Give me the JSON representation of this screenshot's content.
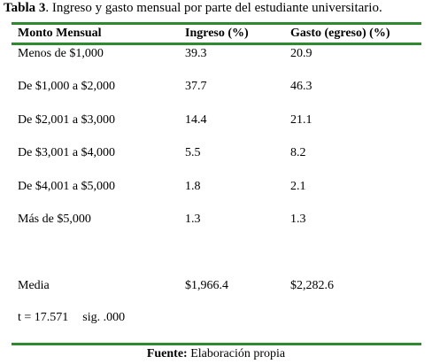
{
  "caption": {
    "label": "Tabla 3",
    "text": ". Ingreso y gasto mensual por parte del estudiante universitario."
  },
  "table": {
    "headers": [
      "Monto Mensual",
      "Ingreso (%)",
      "Gasto (egreso) (%)"
    ],
    "rows": [
      [
        "Menos de $1,000",
        "39.3",
        "20.9"
      ],
      [
        "De $1,000 a $2,000",
        "37.7",
        "46.3"
      ],
      [
        "De $2,001 a $3,000",
        "14.4",
        "21.1"
      ],
      [
        "De $3,001 a $4,000",
        "5.5",
        "8.2"
      ],
      [
        "De $4,001 a $5,000",
        "1.8",
        "2.1"
      ],
      [
        "Más de $5,000",
        "1.3",
        "1.3"
      ]
    ],
    "summary": [
      "Media",
      "$1,966.4",
      "$2,282.6"
    ]
  },
  "stat": {
    "t": "t = 17.571",
    "sig": "sig. .000"
  },
  "source": {
    "label": "Fuente:",
    "text": " Elaboración propia"
  },
  "colors": {
    "rule": "#2f8a2f"
  }
}
